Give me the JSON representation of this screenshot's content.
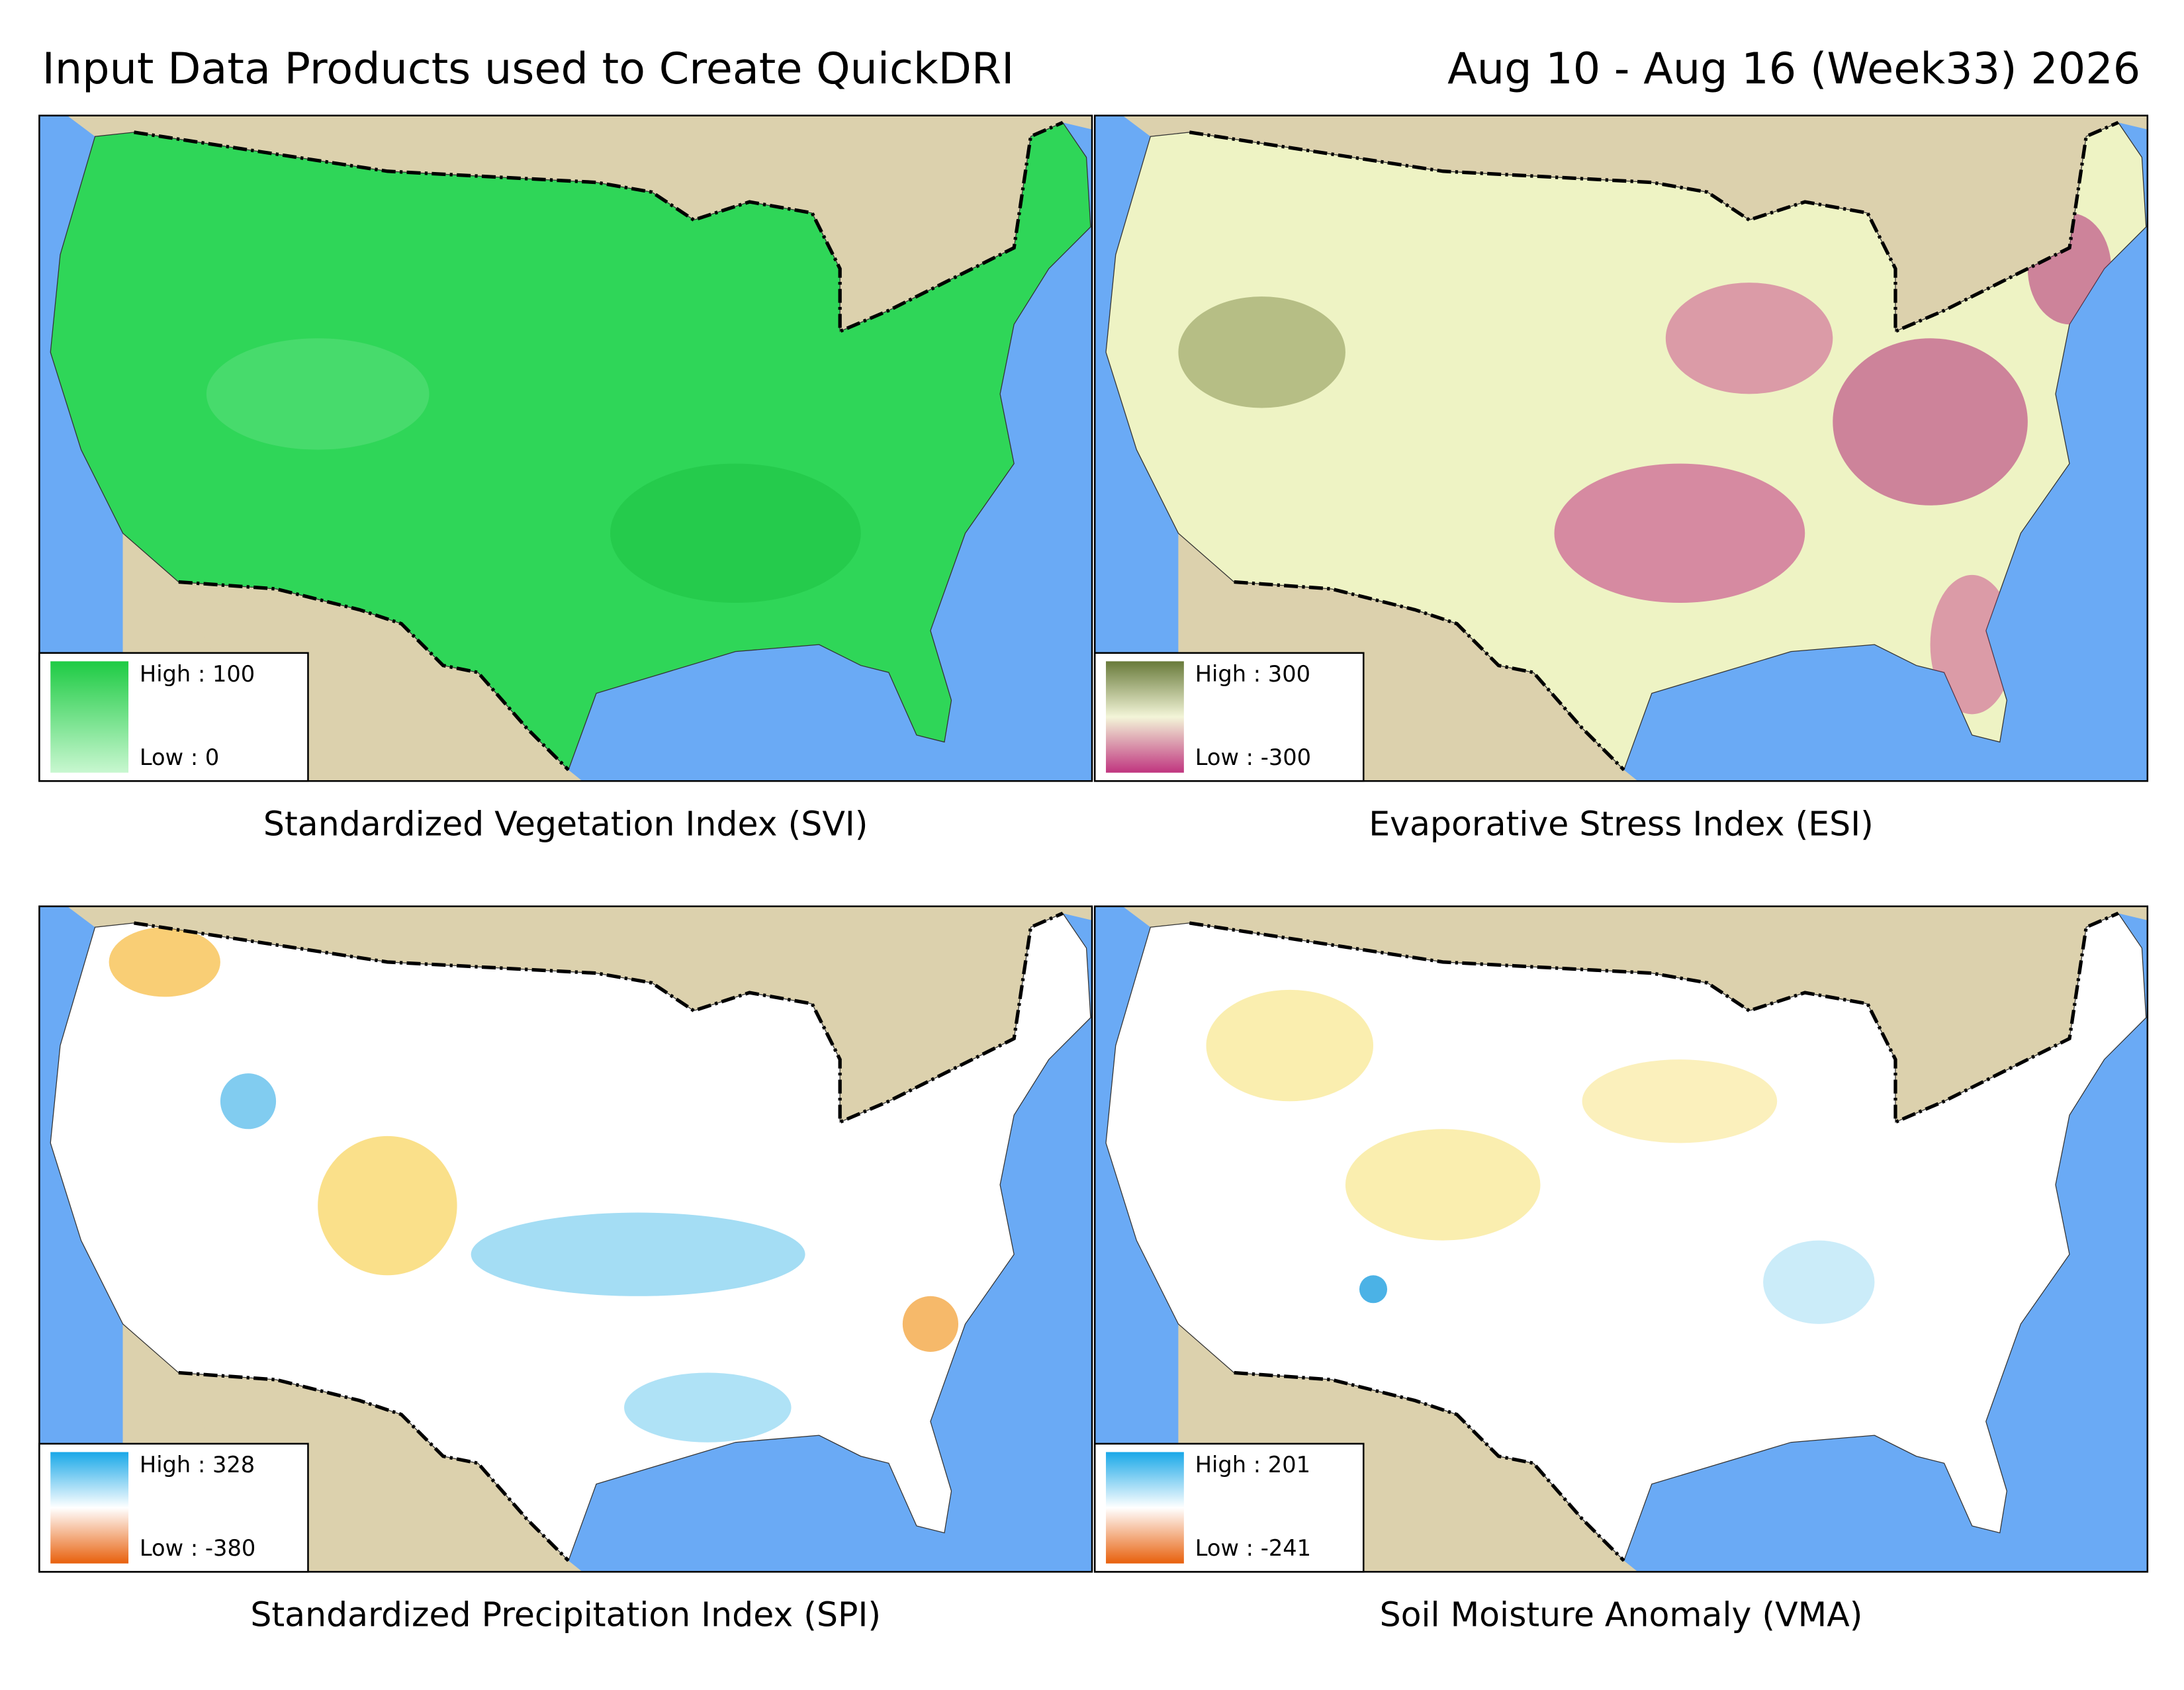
{
  "header": {
    "title": "Input Data Products used to Create QuickDRI",
    "date": "Aug 10 - Aug 16 (Week33) 2026"
  },
  "panels": [
    {
      "caption": "Standardized Vegetation Index (SVI)",
      "legend": {
        "high": "High : 100",
        "low": "Low : 0"
      }
    },
    {
      "caption": "Evaporative Stress Index (ESI)",
      "legend": {
        "high": "High : 300",
        "low": "Low : -300"
      }
    },
    {
      "caption": "Standardized Precipitation Index (SPI)",
      "legend": {
        "high": "High : 328",
        "low": "Low : -380"
      }
    },
    {
      "caption": "Soil Moisture Anomaly (VMA)",
      "legend": {
        "high": "High : 201",
        "low": "Low : -241"
      }
    }
  ]
}
